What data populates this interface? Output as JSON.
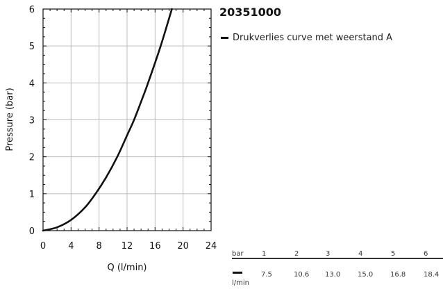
{
  "title": "20351000",
  "legend": {
    "label": "Drukverlies curve met weerstand A",
    "color": "#111111"
  },
  "table": {
    "top_unit": "bar",
    "bottom_unit": "l/min",
    "pressure": [
      "1",
      "2",
      "3",
      "4",
      "5",
      "6"
    ],
    "flow": [
      "7.5",
      "10.6",
      "13.0",
      "15.0",
      "16.8",
      "18.4"
    ]
  },
  "chart_data": {
    "type": "line",
    "title": "20351000",
    "xlabel": "Q (l/min)",
    "ylabel": "Pressure (bar)",
    "xlim": [
      0,
      24
    ],
    "ylim": [
      0,
      6
    ],
    "xticks": [
      0,
      4,
      8,
      12,
      16,
      20,
      24
    ],
    "yticks": [
      0,
      1,
      2,
      3,
      4,
      5,
      6
    ],
    "grid": true,
    "legend_position": "right",
    "series": [
      {
        "name": "Drukverlies curve met weerstand A",
        "color": "#111111",
        "x": [
          0,
          2,
          4,
          6,
          7.5,
          9,
          10.6,
          12,
          13.0,
          14,
          15.0,
          16.8,
          18.4
        ],
        "y": [
          0,
          0.09,
          0.29,
          0.63,
          1,
          1.44,
          2,
          2.58,
          3,
          3.49,
          4,
          5,
          6
        ]
      }
    ]
  }
}
